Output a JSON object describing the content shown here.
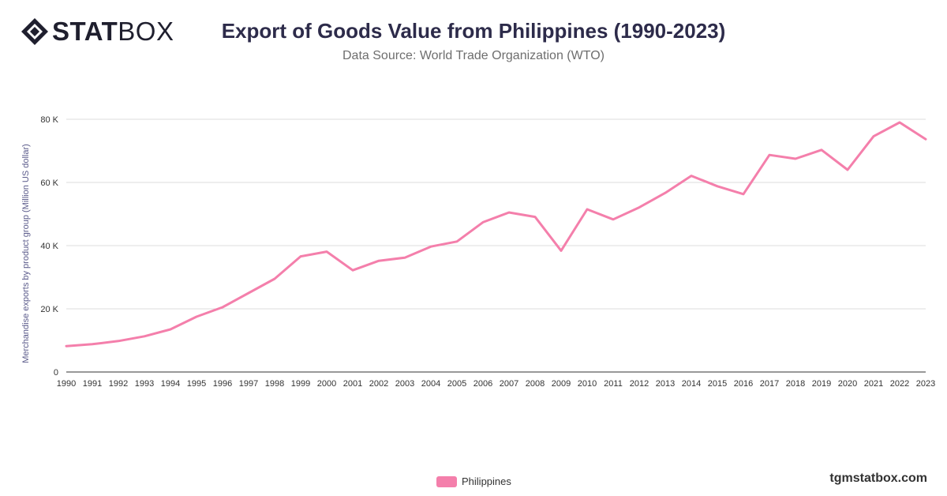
{
  "brand": {
    "logo_bold": "STAT",
    "logo_light": "BOX",
    "watermark": "tgmstatbox.com"
  },
  "header": {
    "title": "Export of Goods Value from Philippines (1990-2023)",
    "subtitle": "Data Source: World Trade Organization (WTO)"
  },
  "chart_data": {
    "type": "line",
    "title": "Export of Goods Value from Philippines (1990-2023)",
    "subtitle": "Data Source: World Trade Organization (WTO)",
    "xlabel": "",
    "ylabel": "Merchandise exports by product group (Million US dollar)",
    "ylim": [
      0,
      80000
    ],
    "yticks": [
      0,
      20000,
      40000,
      60000,
      80000
    ],
    "ytick_labels": [
      "0",
      "20 K",
      "40 K",
      "60 K",
      "80 K"
    ],
    "grid": true,
    "legend_position": "bottom-center",
    "categories": [
      "1990",
      "1991",
      "1992",
      "1993",
      "1994",
      "1995",
      "1996",
      "1997",
      "1998",
      "1999",
      "2000",
      "2001",
      "2002",
      "2003",
      "2004",
      "2005",
      "2006",
      "2007",
      "2008",
      "2009",
      "2010",
      "2011",
      "2012",
      "2013",
      "2014",
      "2015",
      "2016",
      "2017",
      "2018",
      "2019",
      "2020",
      "2021",
      "2022",
      "2023"
    ],
    "series": [
      {
        "name": "Philippines",
        "color": "#f47fab",
        "values": [
          8200,
          8800,
          9800,
          11300,
          13500,
          17500,
          20500,
          25000,
          29500,
          36600,
          38100,
          32200,
          35200,
          36200,
          39700,
          41300,
          47400,
          50500,
          49100,
          38400,
          51500,
          48300,
          52100,
          56700,
          62100,
          58800,
          56300,
          68700,
          67500,
          70300,
          64000,
          74600,
          79000,
          73700
        ]
      }
    ]
  }
}
